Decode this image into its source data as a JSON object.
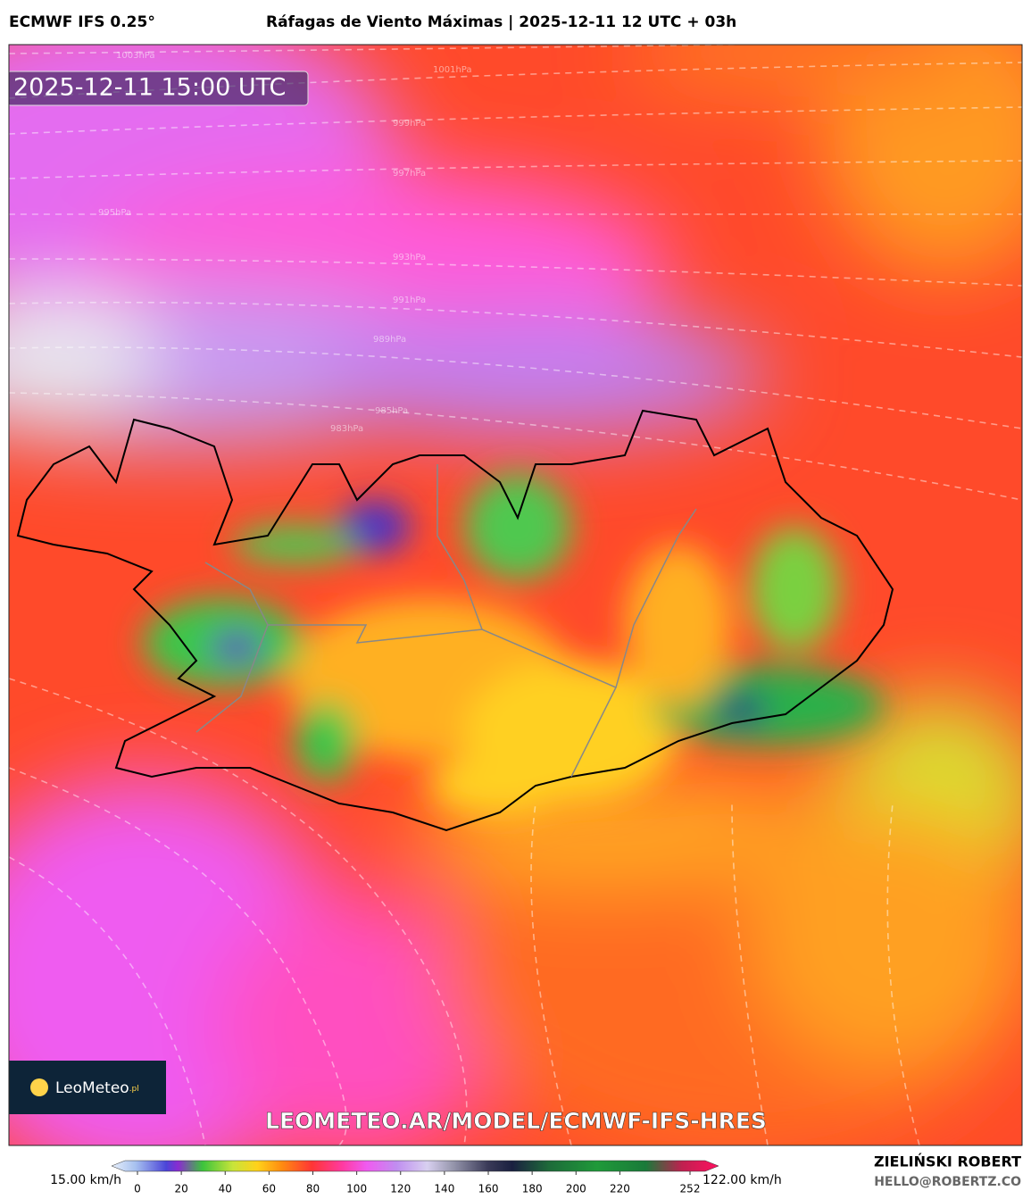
{
  "header": {
    "model": "ECMWF IFS 0.25°",
    "title": "Ráfagas de Viento Máximas | 2025-12-11 12 UTC + 03h"
  },
  "map": {
    "timestamp": "2025-12-11 15:00 UTC",
    "isobars": [
      "1003hPa",
      "1001hPa",
      "999hPa",
      "997hPa",
      "995hPa",
      "993hPa",
      "991hPa",
      "989hPa",
      "985hPa",
      "983hPa"
    ],
    "logo": "LeoMeteo",
    "logo_suffix": ".pl",
    "url": "LEOMETEO.AR/MODEL/ECMWF-IFS-HRES"
  },
  "colorbar": {
    "min_label": "15.00 km/h",
    "max_label": "122.00 km/h",
    "ticks": [
      0,
      20,
      40,
      60,
      80,
      100,
      120,
      140,
      160,
      180,
      200,
      220,
      252
    ]
  },
  "footer": {
    "author": "ZIELIŃSKI ROBERT",
    "email": "HELLO@ROBERTZ.CO"
  }
}
